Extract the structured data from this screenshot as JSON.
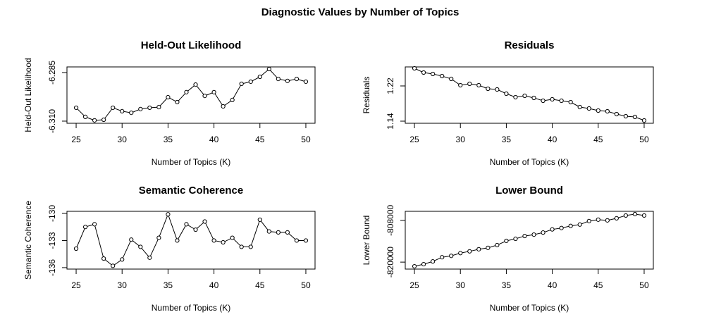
{
  "title": "Diagnostic Values by Number of Topics",
  "chart_data": [
    {
      "type": "line",
      "title": "Held-Out Likelihood",
      "xlabel": "Number of Topics (K)",
      "ylabel": "Held-Out Likelihood",
      "color": "#000000",
      "x": [
        25,
        26,
        27,
        28,
        29,
        30,
        31,
        32,
        33,
        34,
        35,
        36,
        37,
        38,
        39,
        40,
        41,
        42,
        43,
        44,
        45,
        46,
        47,
        48,
        49,
        50
      ],
      "values": [
        -6.3031,
        -6.3078,
        -6.3096,
        -6.3093,
        -6.3031,
        -6.3049,
        -6.3057,
        -6.3038,
        -6.3031,
        -6.3028,
        -6.2977,
        -6.3002,
        -6.2951,
        -6.2912,
        -6.297,
        -6.2951,
        -6.3024,
        -6.2991,
        -6.2908,
        -6.2897,
        -6.2872,
        -6.2832,
        -6.2883,
        -6.2893,
        -6.2883,
        -6.2897
      ],
      "xlim": [
        24,
        51
      ],
      "xticks": [
        25,
        30,
        35,
        40,
        45,
        50
      ],
      "ylim": [
        -6.3111,
        -6.2821
      ],
      "yticks": [
        {
          "value": -6.31,
          "label": "-6.310"
        },
        -6.285
      ]
    },
    {
      "type": "line",
      "title": "Residuals",
      "xlabel": "Number of Topics (K)",
      "ylabel": "Residuals",
      "color": "#000000",
      "x": [
        25,
        26,
        27,
        28,
        29,
        30,
        31,
        32,
        33,
        34,
        35,
        36,
        37,
        38,
        39,
        40,
        41,
        42,
        43,
        44,
        45,
        46,
        47,
        48,
        49,
        50
      ],
      "values": [
        1.26,
        1.2504,
        1.2472,
        1.2424,
        1.236,
        1.2216,
        1.2248,
        1.2216,
        1.2136,
        1.212,
        1.2024,
        1.1944,
        1.1976,
        1.1928,
        1.1864,
        1.1896,
        1.1864,
        1.1832,
        1.172,
        1.1688,
        1.164,
        1.1624,
        1.156,
        1.1512,
        1.1496,
        1.1416
      ],
      "xlim": [
        24,
        51
      ],
      "xticks": [
        25,
        30,
        35,
        40,
        45,
        50
      ],
      "ylim": [
        1.1352,
        1.2632
      ],
      "yticks": [
        1.14,
        1.22
      ]
    },
    {
      "type": "line",
      "title": "Semantic Coherence",
      "xlabel": "Number of Topics (K)",
      "ylabel": "Semantic Coherence",
      "color": "#000000",
      "x": [
        25,
        26,
        27,
        28,
        29,
        30,
        31,
        32,
        33,
        34,
        35,
        36,
        37,
        38,
        39,
        40,
        41,
        42,
        43,
        44,
        45,
        46,
        47,
        48,
        49,
        50
      ],
      "values": [
        -133.9,
        -131.5,
        -131.2,
        -135.0,
        -135.8,
        -135.1,
        -132.9,
        -133.7,
        -134.9,
        -132.7,
        -130.1,
        -133.0,
        -131.2,
        -131.8,
        -130.9,
        -133.0,
        -133.2,
        -132.7,
        -133.7,
        -133.7,
        -130.7,
        -132.0,
        -132.1,
        -132.1,
        -133.0,
        -133.0
      ],
      "xlim": [
        24,
        51
      ],
      "xticks": [
        25,
        30,
        35,
        40,
        45,
        50
      ],
      "ylim": [
        -136.16,
        -129.77
      ],
      "yticks": [
        -136,
        -133,
        -130
      ]
    },
    {
      "type": "line",
      "title": "Lower Bound",
      "xlabel": "Number of Topics (K)",
      "ylabel": "Lower Bound",
      "color": "#000000",
      "x": [
        25,
        26,
        27,
        28,
        29,
        30,
        31,
        32,
        33,
        34,
        35,
        36,
        37,
        38,
        39,
        40,
        41,
        42,
        43,
        44,
        45,
        46,
        47,
        48,
        49,
        50
      ],
      "values": [
        -821200,
        -820600,
        -819800,
        -818600,
        -818200,
        -817400,
        -816900,
        -816300,
        -815900,
        -815100,
        -813900,
        -813300,
        -812500,
        -812100,
        -811500,
        -810600,
        -810200,
        -809600,
        -809200,
        -808200,
        -807800,
        -808000,
        -807400,
        -806600,
        -806200,
        -806600
      ],
      "xlim": [
        24,
        51
      ],
      "xticks": [
        25,
        30,
        35,
        40,
        45,
        50
      ],
      "ylim": [
        -822000,
        -805400
      ],
      "yticks": [
        -820000,
        -808000
      ]
    }
  ]
}
